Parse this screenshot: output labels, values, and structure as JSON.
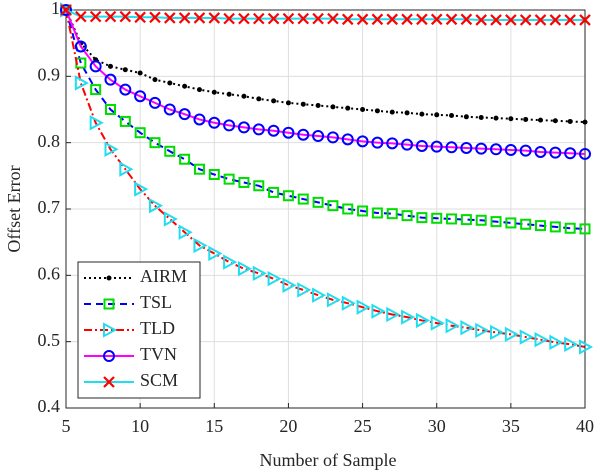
{
  "chart_data": {
    "type": "line",
    "xlabel": "Number of Sample",
    "ylabel": "Offset Error",
    "x": [
      5,
      6,
      7,
      8,
      9,
      10,
      11,
      12,
      13,
      14,
      15,
      16,
      17,
      18,
      19,
      20,
      21,
      22,
      23,
      24,
      25,
      26,
      27,
      28,
      29,
      30,
      31,
      32,
      33,
      34,
      35,
      36,
      37,
      38,
      39,
      40
    ],
    "xlim": [
      5,
      40
    ],
    "xticks": [
      5,
      10,
      15,
      20,
      25,
      30,
      35,
      40
    ],
    "ylim": [
      0.4,
      1
    ],
    "yticks": [
      0.4,
      0.5,
      0.6,
      0.7,
      0.8,
      0.9,
      1
    ],
    "grid": true,
    "legend": "lower left",
    "series": [
      {
        "name": "AIRM",
        "color": "#000000",
        "marker_color": "#000000",
        "marker": "dot",
        "dash": "2,3",
        "values": [
          1,
          0.95,
          0.925,
          0.915,
          0.91,
          0.905,
          0.895,
          0.89,
          0.885,
          0.88,
          0.876,
          0.873,
          0.87,
          0.866,
          0.863,
          0.86,
          0.858,
          0.856,
          0.854,
          0.852,
          0.85,
          0.848,
          0.846,
          0.845,
          0.843,
          0.842,
          0.841,
          0.839,
          0.838,
          0.837,
          0.836,
          0.835,
          0.834,
          0.833,
          0.832,
          0.831
        ]
      },
      {
        "name": "TSL",
        "color": "#0000ff",
        "marker_color": "#00dd00",
        "marker": "square",
        "dash": "7,5",
        "values": [
          1,
          0.92,
          0.88,
          0.85,
          0.832,
          0.815,
          0.8,
          0.787,
          0.775,
          0.76,
          0.752,
          0.745,
          0.74,
          0.735,
          0.725,
          0.72,
          0.715,
          0.71,
          0.705,
          0.7,
          0.697,
          0.694,
          0.693,
          0.69,
          0.687,
          0.686,
          0.685,
          0.684,
          0.683,
          0.681,
          0.679,
          0.677,
          0.675,
          0.673,
          0.671,
          0.67
        ]
      },
      {
        "name": "TLD",
        "color": "#ff0000",
        "marker_color": "#22ddee",
        "marker": "triangle",
        "dash": "8,3,2,3",
        "values": [
          1,
          0.89,
          0.83,
          0.79,
          0.76,
          0.73,
          0.705,
          0.685,
          0.665,
          0.645,
          0.633,
          0.62,
          0.61,
          0.603,
          0.595,
          0.585,
          0.578,
          0.57,
          0.563,
          0.558,
          0.552,
          0.546,
          0.541,
          0.537,
          0.532,
          0.528,
          0.524,
          0.521,
          0.517,
          0.514,
          0.511,
          0.507,
          0.503,
          0.499,
          0.496,
          0.492
        ]
      },
      {
        "name": "TVN",
        "color": "#ff00ff",
        "marker_color": "#0000ff",
        "marker": "circle",
        "dash": "none",
        "values": [
          1,
          0.945,
          0.915,
          0.895,
          0.88,
          0.87,
          0.86,
          0.85,
          0.843,
          0.835,
          0.83,
          0.826,
          0.823,
          0.82,
          0.818,
          0.815,
          0.812,
          0.81,
          0.808,
          0.805,
          0.802,
          0.8,
          0.799,
          0.797,
          0.795,
          0.794,
          0.793,
          0.792,
          0.791,
          0.79,
          0.789,
          0.788,
          0.786,
          0.785,
          0.784,
          0.783
        ]
      },
      {
        "name": "SCM",
        "color": "#22ddee",
        "marker_color": "#ff0000",
        "marker": "x",
        "dash": "none",
        "values": [
          1,
          0.99,
          0.99,
          0.99,
          0.99,
          0.989,
          0.989,
          0.988,
          0.988,
          0.988,
          0.988,
          0.987,
          0.987,
          0.987,
          0.987,
          0.987,
          0.987,
          0.987,
          0.987,
          0.986,
          0.986,
          0.986,
          0.986,
          0.986,
          0.986,
          0.986,
          0.986,
          0.986,
          0.985,
          0.985,
          0.985,
          0.985,
          0.985,
          0.985,
          0.985,
          0.985
        ]
      }
    ]
  }
}
